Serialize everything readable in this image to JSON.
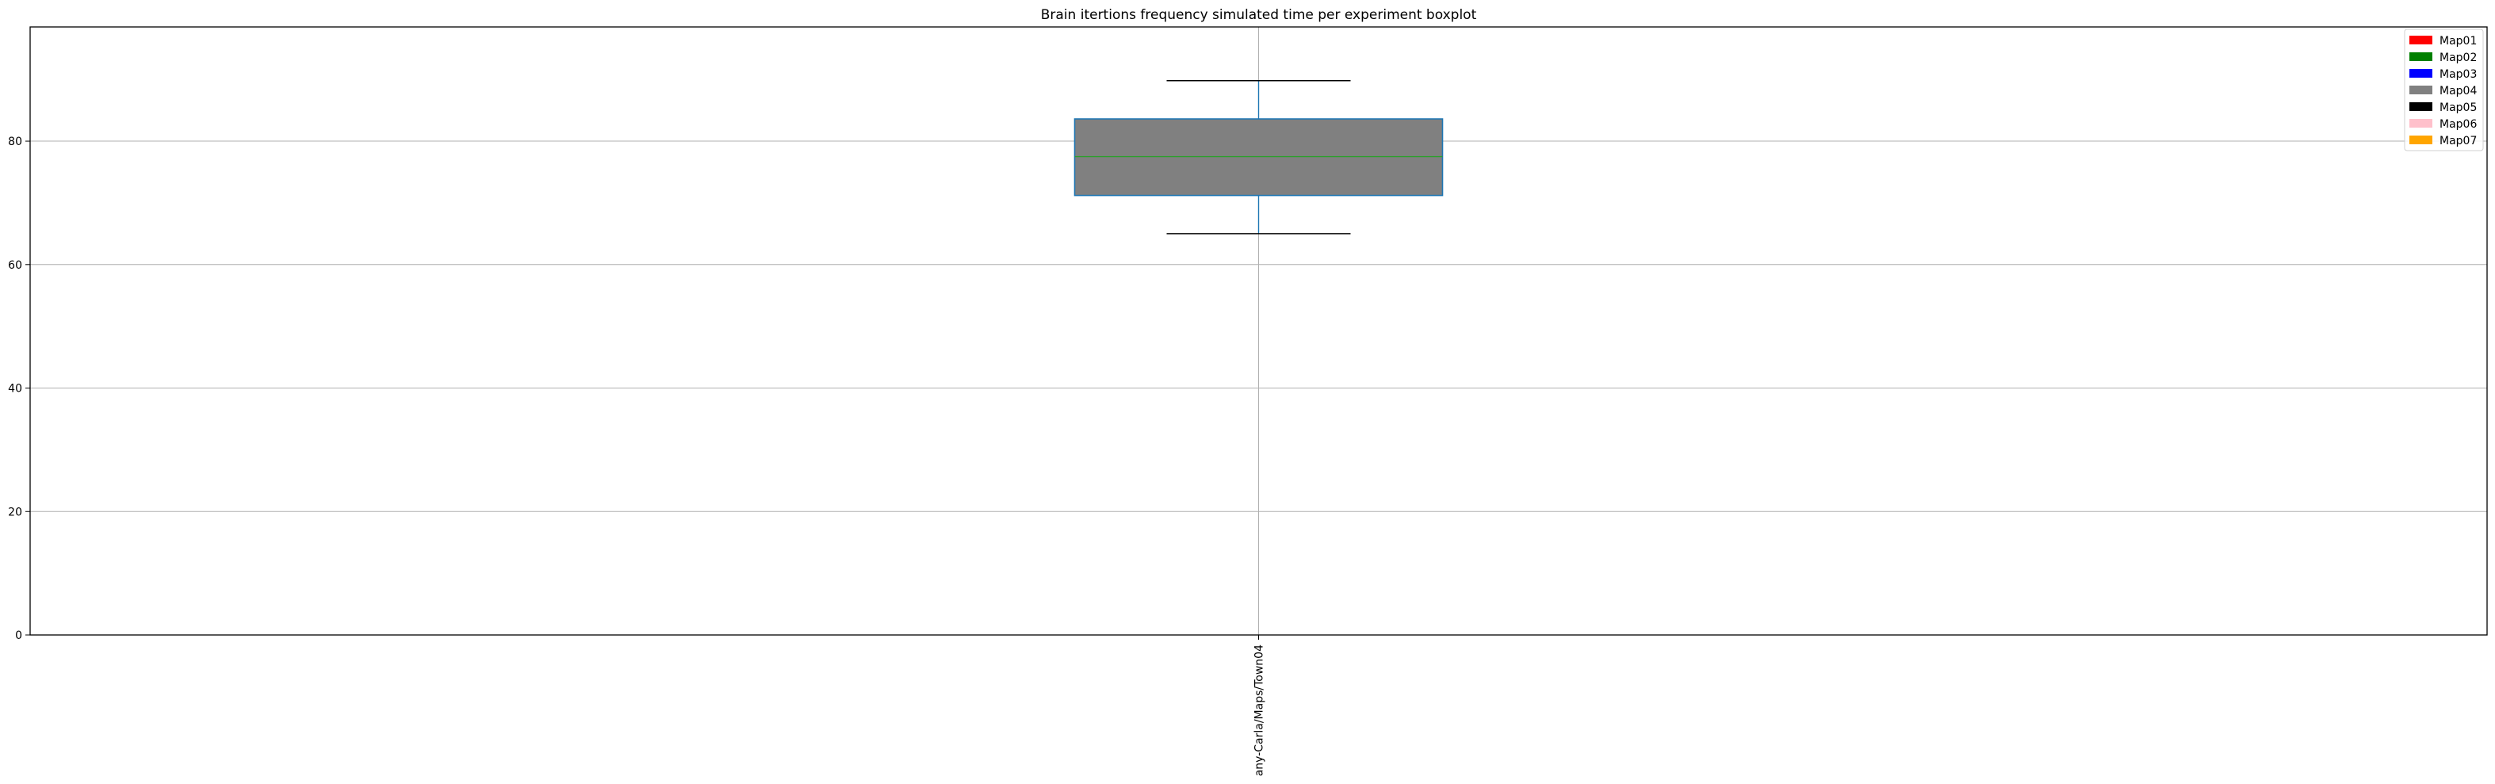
{
  "chart_data": {
    "type": "boxplot",
    "title": "Brain itertions frequency simulated time per experiment boxplot",
    "xlabel": "",
    "ylabel": "",
    "categories": [
      "any-Carla/Maps/Town04"
    ],
    "boxes": [
      {
        "category": "any-Carla/Maps/Town04",
        "whisker_low": 65.0,
        "q1": 71.2,
        "median": 77.5,
        "q3": 83.6,
        "whisker_high": 89.8,
        "fill": "#808080"
      }
    ],
    "ylim": [
      0,
      98.5
    ],
    "yticks": [
      0,
      20,
      40,
      60,
      80
    ],
    "grid": true,
    "legend": {
      "placement": "top-right",
      "entries": [
        {
          "label": "Map01",
          "color": "#ff0000"
        },
        {
          "label": "Map02",
          "color": "#008000"
        },
        {
          "label": "Map03",
          "color": "#0000ff"
        },
        {
          "label": "Map04",
          "color": "#808080"
        },
        {
          "label": "Map05",
          "color": "#000000"
        },
        {
          "label": "Map06",
          "color": "#ffc0cb"
        },
        {
          "label": "Map07",
          "color": "#ffa500"
        }
      ]
    },
    "colors": {
      "box_edge": "#1f77b4",
      "median": "#2ca02c",
      "whisker": "#1f77b4",
      "cap": "#000000",
      "grid": "#b0b0b0"
    }
  }
}
